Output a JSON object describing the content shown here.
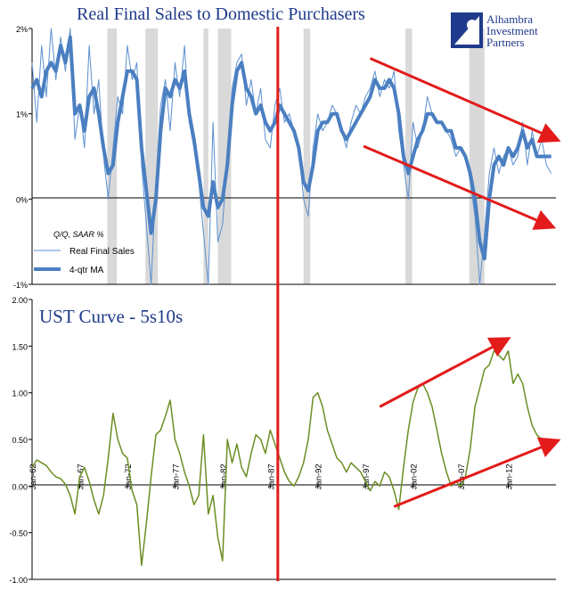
{
  "logo": {
    "lines": [
      "Alhambra",
      "Investment",
      "Partners"
    ],
    "color": "#1f3a8a"
  },
  "chart_data": [
    {
      "type": "line",
      "title": "Real Final Sales to Domestic Purchasers",
      "legend_note": "Q/Q, SAAR %",
      "ytick_labels": [
        "2%",
        "1%",
        "0%",
        "-1%"
      ],
      "ylim": [
        -1,
        2
      ],
      "x_range": [
        1962,
        2017
      ],
      "grid": false,
      "legend_position": "lower-left",
      "recessions": [
        [
          1969.9,
          1970.9
        ],
        [
          1973.9,
          1975.2
        ],
        [
          1980.0,
          1980.5
        ],
        [
          1981.5,
          1982.9
        ],
        [
          1990.5,
          1991.2
        ],
        [
          2001.2,
          2001.9
        ],
        [
          2007.9,
          2009.5
        ]
      ],
      "series": [
        {
          "name": "Real Final Sales",
          "color": "#5b8fd0",
          "x": [
            1962.0,
            1962.5,
            1963.0,
            1963.5,
            1964.0,
            1964.5,
            1965.0,
            1965.5,
            1966.0,
            1966.5,
            1967.0,
            1967.5,
            1968.0,
            1968.5,
            1969.0,
            1969.5,
            1970.0,
            1970.5,
            1971.0,
            1971.5,
            1972.0,
            1972.5,
            1973.0,
            1973.5,
            1974.0,
            1974.5,
            1975.0,
            1975.5,
            1976.0,
            1976.5,
            1977.0,
            1977.5,
            1978.0,
            1978.5,
            1979.0,
            1979.5,
            1980.0,
            1980.5,
            1981.0,
            1981.5,
            1982.0,
            1982.5,
            1983.0,
            1983.5,
            1984.0,
            1984.5,
            1985.0,
            1985.5,
            1986.0,
            1986.5,
            1987.0,
            1987.5,
            1988.0,
            1988.5,
            1989.0,
            1989.5,
            1990.0,
            1990.5,
            1991.0,
            1991.5,
            1992.0,
            1992.5,
            1993.0,
            1993.5,
            1994.0,
            1994.5,
            1995.0,
            1995.5,
            1996.0,
            1996.5,
            1997.0,
            1997.5,
            1998.0,
            1998.5,
            1999.0,
            1999.5,
            2000.0,
            2000.5,
            2001.0,
            2001.5,
            2002.0,
            2002.5,
            2003.0,
            2003.5,
            2004.0,
            2004.5,
            2005.0,
            2005.5,
            2006.0,
            2006.5,
            2007.0,
            2007.5,
            2008.0,
            2008.5,
            2009.0,
            2009.5,
            2010.0,
            2010.5,
            2011.0,
            2011.5,
            2012.0,
            2012.5,
            2013.0,
            2013.5,
            2014.0,
            2014.5,
            2015.0,
            2015.5,
            2016.0,
            2016.5
          ],
          "y": [
            1.6,
            0.9,
            1.8,
            1.2,
            2.0,
            1.4,
            1.9,
            1.5,
            2.0,
            0.7,
            1.1,
            0.6,
            1.8,
            1.0,
            1.4,
            0.5,
            0.0,
            0.6,
            1.2,
            1.0,
            1.8,
            1.4,
            1.6,
            0.4,
            -0.3,
            -1.0,
            0.2,
            1.1,
            1.4,
            0.8,
            1.6,
            1.2,
            1.8,
            0.9,
            0.6,
            0.2,
            -0.4,
            -1.0,
            0.9,
            -0.5,
            -0.3,
            0.5,
            1.3,
            1.6,
            1.7,
            1.1,
            1.4,
            1.0,
            1.3,
            0.7,
            0.6,
            1.1,
            1.3,
            0.9,
            1.0,
            0.8,
            0.6,
            0.0,
            -0.2,
            0.6,
            1.0,
            0.8,
            0.9,
            1.1,
            1.0,
            0.8,
            0.6,
            0.9,
            1.1,
            1.0,
            1.2,
            1.3,
            1.5,
            1.2,
            1.4,
            1.3,
            1.5,
            0.8,
            0.4,
            0.0,
            0.9,
            0.6,
            0.8,
            1.2,
            1.0,
            0.9,
            0.9,
            0.8,
            0.7,
            0.5,
            0.6,
            0.5,
            0.2,
            -0.2,
            -1.0,
            -0.4,
            0.3,
            0.6,
            0.3,
            0.5,
            0.6,
            0.4,
            0.5,
            0.9,
            0.4,
            0.8,
            0.5,
            0.7,
            0.4,
            0.3
          ],
          "width": 1
        },
        {
          "name": "4-qtr MA",
          "color": "#4a7fc1",
          "x": [
            1962.0,
            1962.5,
            1963.0,
            1963.5,
            1964.0,
            1964.5,
            1965.0,
            1965.5,
            1966.0,
            1966.5,
            1967.0,
            1967.5,
            1968.0,
            1968.5,
            1969.0,
            1969.5,
            1970.0,
            1970.5,
            1971.0,
            1971.5,
            1972.0,
            1972.5,
            1973.0,
            1973.5,
            1974.0,
            1974.5,
            1975.0,
            1975.5,
            1976.0,
            1976.5,
            1977.0,
            1977.5,
            1978.0,
            1978.5,
            1979.0,
            1979.5,
            1980.0,
            1980.5,
            1981.0,
            1981.5,
            1982.0,
            1982.5,
            1983.0,
            1983.5,
            1984.0,
            1984.5,
            1985.0,
            1985.5,
            1986.0,
            1986.5,
            1987.0,
            1987.5,
            1988.0,
            1988.5,
            1989.0,
            1989.5,
            1990.0,
            1990.5,
            1991.0,
            1991.5,
            1992.0,
            1992.5,
            1993.0,
            1993.5,
            1994.0,
            1994.5,
            1995.0,
            1995.5,
            1996.0,
            1996.5,
            1997.0,
            1997.5,
            1998.0,
            1998.5,
            1999.0,
            1999.5,
            2000.0,
            2000.5,
            2001.0,
            2001.5,
            2002.0,
            2002.5,
            2003.0,
            2003.5,
            2004.0,
            2004.5,
            2005.0,
            2005.5,
            2006.0,
            2006.5,
            2007.0,
            2007.5,
            2008.0,
            2008.5,
            2009.0,
            2009.5,
            2010.0,
            2010.5,
            2011.0,
            2011.5,
            2012.0,
            2012.5,
            2013.0,
            2013.5,
            2014.0,
            2014.5,
            2015.0,
            2015.5,
            2016.0,
            2016.5
          ],
          "y": [
            1.3,
            1.4,
            1.2,
            1.5,
            1.6,
            1.5,
            1.8,
            1.6,
            1.9,
            1.0,
            1.1,
            0.8,
            1.2,
            1.3,
            1.0,
            0.6,
            0.3,
            0.4,
            0.9,
            1.2,
            1.5,
            1.5,
            1.4,
            0.6,
            0.1,
            -0.4,
            0.0,
            0.8,
            1.3,
            1.2,
            1.4,
            1.3,
            1.5,
            1.0,
            0.7,
            0.3,
            -0.1,
            -0.2,
            0.2,
            -0.1,
            0.0,
            0.4,
            1.1,
            1.5,
            1.6,
            1.3,
            1.2,
            1.0,
            1.1,
            0.9,
            0.8,
            0.9,
            1.1,
            1.0,
            0.9,
            0.8,
            0.6,
            0.2,
            0.1,
            0.4,
            0.8,
            0.9,
            0.9,
            1.0,
            1.0,
            0.8,
            0.7,
            0.8,
            0.9,
            1.0,
            1.1,
            1.2,
            1.4,
            1.3,
            1.3,
            1.4,
            1.3,
            1.0,
            0.5,
            0.3,
            0.5,
            0.7,
            0.8,
            1.0,
            1.0,
            0.9,
            0.9,
            0.8,
            0.8,
            0.6,
            0.6,
            0.5,
            0.3,
            0.0,
            -0.5,
            -0.7,
            0.0,
            0.4,
            0.5,
            0.4,
            0.6,
            0.5,
            0.6,
            0.8,
            0.6,
            0.7,
            0.5,
            0.5,
            0.5,
            0.5
          ],
          "width": 4
        }
      ],
      "annotations": [
        {
          "kind": "red-arrow",
          "from": [
            1997.5,
            1.65
          ],
          "to": [
            2017.0,
            0.7
          ]
        },
        {
          "kind": "red-arrow",
          "from": [
            1996.8,
            0.62
          ],
          "to": [
            2016.5,
            -0.32
          ]
        },
        {
          "kind": "red-vertical-line",
          "x": 1987.8
        }
      ]
    },
    {
      "type": "line",
      "title": "UST Curve - 5s10s",
      "ytick_labels": [
        "2.00",
        "1.50",
        "1.00",
        "0.50",
        "0.00",
        "-0.50",
        "-1.00"
      ],
      "ylim": [
        -1.0,
        2.0
      ],
      "x_range": [
        1962,
        2017
      ],
      "grid": false,
      "xtick_labels": [
        "Jan-62",
        "Jan-67",
        "Jan-72",
        "Jan-77",
        "Jan-82",
        "Jan-87",
        "Jan-92",
        "Jan-97",
        "Jan-02",
        "Jan-07",
        "Jan-12"
      ],
      "xtick_values": [
        1962,
        1967,
        1972,
        1977,
        1982,
        1987,
        1992,
        1997,
        2002,
        2007,
        2012
      ],
      "series": [
        {
          "name": "",
          "color": "#6b8e23",
          "x": [
            1962.0,
            1962.5,
            1963.0,
            1963.5,
            1964.0,
            1964.5,
            1965.0,
            1965.5,
            1966.0,
            1966.5,
            1967.0,
            1967.5,
            1968.0,
            1968.5,
            1969.0,
            1969.5,
            1970.0,
            1970.5,
            1971.0,
            1971.5,
            1972.0,
            1972.5,
            1973.0,
            1973.5,
            1974.0,
            1974.5,
            1975.0,
            1975.5,
            1976.0,
            1976.5,
            1977.0,
            1977.5,
            1978.0,
            1978.5,
            1979.0,
            1979.5,
            1980.0,
            1980.5,
            1981.0,
            1981.5,
            1982.0,
            1982.5,
            1983.0,
            1983.5,
            1984.0,
            1984.5,
            1985.0,
            1985.5,
            1986.0,
            1986.5,
            1987.0,
            1987.5,
            1988.0,
            1988.5,
            1989.0,
            1989.5,
            1990.0,
            1990.5,
            1991.0,
            1991.5,
            1992.0,
            1992.5,
            1993.0,
            1993.5,
            1994.0,
            1994.5,
            1995.0,
            1995.5,
            1996.0,
            1996.5,
            1997.0,
            1997.5,
            1998.0,
            1998.5,
            1999.0,
            1999.5,
            2000.0,
            2000.5,
            2001.0,
            2001.5,
            2002.0,
            2002.5,
            2003.0,
            2003.5,
            2004.0,
            2004.5,
            2005.0,
            2005.5,
            2006.0,
            2006.5,
            2007.0,
            2007.5,
            2008.0,
            2008.5,
            2009.0,
            2009.5,
            2010.0,
            2010.5,
            2011.0,
            2011.5,
            2012.0,
            2012.5,
            2013.0,
            2013.5,
            2014.0,
            2014.5,
            2015.0,
            2015.5,
            2016.0,
            2016.5
          ],
          "y": [
            0.2,
            0.28,
            0.25,
            0.22,
            0.15,
            0.1,
            0.08,
            0.02,
            -0.1,
            -0.3,
            0.1,
            0.2,
            0.05,
            -0.15,
            -0.3,
            -0.1,
            0.3,
            0.78,
            0.5,
            0.35,
            0.3,
            -0.05,
            -0.2,
            -0.85,
            -0.4,
            0.1,
            0.55,
            0.6,
            0.75,
            0.92,
            0.5,
            0.35,
            0.15,
            0.0,
            -0.2,
            -0.1,
            0.55,
            -0.3,
            -0.1,
            -0.55,
            -0.8,
            0.5,
            0.25,
            0.45,
            0.2,
            0.1,
            0.35,
            0.55,
            0.5,
            0.35,
            0.6,
            0.45,
            0.3,
            0.15,
            0.05,
            0.0,
            0.1,
            0.25,
            0.5,
            0.95,
            1.0,
            0.85,
            0.6,
            0.45,
            0.3,
            0.25,
            0.15,
            0.25,
            0.2,
            0.15,
            0.05,
            -0.05,
            0.05,
            0.0,
            0.15,
            0.1,
            -0.05,
            -0.25,
            0.2,
            0.6,
            0.9,
            1.05,
            1.1,
            1.0,
            0.85,
            0.6,
            0.35,
            0.15,
            0.0,
            0.05,
            0.0,
            0.1,
            0.4,
            0.85,
            1.05,
            1.25,
            1.3,
            1.45,
            1.4,
            1.35,
            1.45,
            1.1,
            1.2,
            1.1,
            0.85,
            0.65,
            0.55,
            0.5,
            0.45,
            0.5
          ],
          "width": 1.5
        }
      ],
      "annotations": [
        {
          "kind": "red-arrow",
          "from": [
            1998.5,
            0.85
          ],
          "to": [
            2011.8,
            1.57
          ]
        },
        {
          "kind": "red-arrow",
          "from": [
            2000.0,
            -0.22
          ],
          "to": [
            2017.0,
            0.48
          ]
        },
        {
          "kind": "red-vertical-line",
          "x": 1987.8
        }
      ]
    }
  ]
}
